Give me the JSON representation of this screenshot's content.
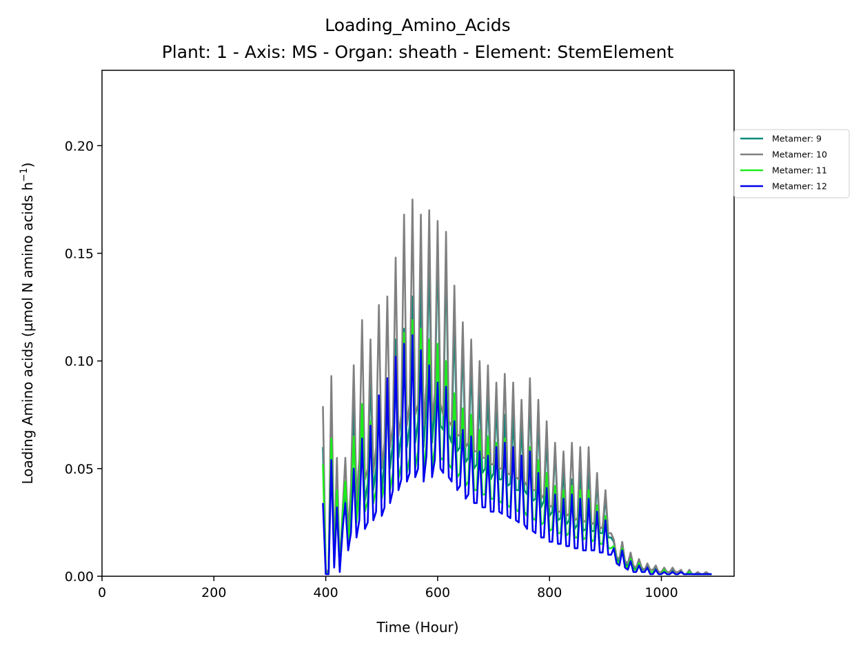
{
  "chart_data": {
    "type": "line",
    "title": "Loading_Amino_Acids",
    "subtitle": "Plant: 1 - Axis: MS - Organ: sheath - Element: StemElement",
    "xlabel": "Time (Hour)",
    "ylabel": "Loading Amino acids (µmol N amino acids h",
    "ylabel_superscript": "−1",
    "ylabel_close": ")",
    "xlim": [
      0,
      1130
    ],
    "ylim": [
      0,
      0.235
    ],
    "x_ticks": [
      0,
      200,
      400,
      600,
      800,
      1000
    ],
    "x_tick_labels": [
      "0",
      "200",
      "400",
      "600",
      "800",
      "1000"
    ],
    "y_ticks": [
      0,
      0.05,
      0.1,
      0.15,
      0.2
    ],
    "y_tick_labels": [
      "0.00",
      "0.05",
      "0.10",
      "0.15",
      "0.20"
    ],
    "grid": false,
    "legend_position": "outside upper right",
    "series": [
      {
        "name": "Metamer: 9",
        "color": "#00897b",
        "x": [
          395,
          400,
          405,
          410,
          415,
          420,
          425,
          430,
          435,
          440,
          445,
          450,
          455,
          460,
          465,
          470,
          475,
          480,
          485,
          490,
          495,
          500,
          505,
          510,
          515,
          520,
          525,
          530,
          535,
          540,
          545,
          550,
          555,
          560,
          565,
          570,
          575,
          580,
          585,
          590,
          595,
          600,
          605,
          610,
          615,
          620,
          625,
          630,
          635,
          640,
          645,
          650,
          655,
          660,
          665,
          670,
          675,
          680,
          685,
          690,
          695,
          700,
          705,
          710,
          715,
          720,
          725,
          730,
          735,
          740,
          745,
          750,
          755,
          760,
          765,
          770,
          775,
          780,
          785,
          790,
          795,
          800,
          805,
          810,
          815,
          820,
          825,
          830,
          835,
          840,
          845,
          850,
          855,
          860,
          865,
          870,
          875,
          880,
          885,
          890,
          895,
          900,
          905,
          910,
          915,
          920,
          925,
          930,
          935,
          940,
          945,
          950,
          955,
          960,
          965,
          970,
          975,
          980,
          985,
          990,
          995,
          1000,
          1005,
          1010,
          1015,
          1020,
          1025,
          1030,
          1035,
          1040,
          1045,
          1050,
          1055,
          1060,
          1065,
          1070,
          1075,
          1080,
          1085,
          1090
        ],
        "values": [
          0.06,
          0.002,
          0.001,
          0.078,
          0.005,
          0.04,
          0.003,
          0.02,
          0.04,
          0.014,
          0.035,
          0.08,
          0.028,
          0.048,
          0.08,
          0.035,
          0.043,
          0.095,
          0.04,
          0.05,
          0.082,
          0.038,
          0.055,
          0.09,
          0.05,
          0.062,
          0.11,
          0.055,
          0.066,
          0.115,
          0.06,
          0.07,
          0.13,
          0.062,
          0.072,
          0.14,
          0.06,
          0.082,
          0.15,
          0.062,
          0.078,
          0.155,
          0.07,
          0.068,
          0.15,
          0.066,
          0.062,
          0.12,
          0.058,
          0.06,
          0.11,
          0.053,
          0.055,
          0.1,
          0.05,
          0.052,
          0.085,
          0.048,
          0.05,
          0.085,
          0.045,
          0.048,
          0.08,
          0.045,
          0.045,
          0.075,
          0.042,
          0.043,
          0.075,
          0.04,
          0.04,
          0.07,
          0.04,
          0.038,
          0.085,
          0.035,
          0.036,
          0.075,
          0.032,
          0.035,
          0.065,
          0.028,
          0.03,
          0.06,
          0.026,
          0.027,
          0.05,
          0.024,
          0.026,
          0.045,
          0.022,
          0.024,
          0.05,
          0.021,
          0.022,
          0.05,
          0.021,
          0.021,
          0.045,
          0.02,
          0.02,
          0.038,
          0.018,
          0.018,
          0.016,
          0.008,
          0.007,
          0.015,
          0.006,
          0.005,
          0.009,
          0.004,
          0.003,
          0.007,
          0.003,
          0.003,
          0.005,
          0.002,
          0.002,
          0.004,
          0.002,
          0.002,
          0.003,
          0.001,
          0.001,
          0.003,
          0.001,
          0.001,
          0.002,
          0.001,
          0.001,
          0.002,
          0.001,
          0.001,
          0.001,
          0.001,
          0.001,
          0.001,
          0.001,
          0.001
        ]
      },
      {
        "name": "Metamer: 10",
        "color": "#808080",
        "x": [
          395,
          400,
          405,
          410,
          415,
          420,
          425,
          430,
          435,
          440,
          445,
          450,
          455,
          460,
          465,
          470,
          475,
          480,
          485,
          490,
          495,
          500,
          505,
          510,
          515,
          520,
          525,
          530,
          535,
          540,
          545,
          550,
          555,
          560,
          565,
          570,
          575,
          580,
          585,
          590,
          595,
          600,
          605,
          610,
          615,
          620,
          625,
          630,
          635,
          640,
          645,
          650,
          655,
          660,
          665,
          670,
          675,
          680,
          685,
          690,
          695,
          700,
          705,
          710,
          715,
          720,
          725,
          730,
          735,
          740,
          745,
          750,
          755,
          760,
          765,
          770,
          775,
          780,
          785,
          790,
          795,
          800,
          805,
          810,
          815,
          820,
          825,
          830,
          835,
          840,
          845,
          850,
          855,
          860,
          865,
          870,
          875,
          880,
          885,
          890,
          895,
          900,
          905,
          910,
          915,
          920,
          925,
          930,
          935,
          940,
          945,
          950,
          955,
          960,
          965,
          970,
          975,
          980,
          985,
          990,
          995,
          1000,
          1005,
          1010,
          1015,
          1020,
          1025,
          1030,
          1035,
          1040,
          1045,
          1050,
          1055,
          1060,
          1065,
          1070,
          1075,
          1080,
          1085,
          1090
        ],
        "values": [
          0.079,
          0.003,
          0.002,
          0.093,
          0.008,
          0.055,
          0.004,
          0.03,
          0.055,
          0.02,
          0.042,
          0.098,
          0.035,
          0.055,
          0.119,
          0.045,
          0.05,
          0.11,
          0.048,
          0.06,
          0.126,
          0.05,
          0.062,
          0.13,
          0.06,
          0.07,
          0.148,
          0.065,
          0.075,
          0.168,
          0.07,
          0.08,
          0.175,
          0.075,
          0.08,
          0.168,
          0.07,
          0.09,
          0.17,
          0.072,
          0.085,
          0.165,
          0.08,
          0.075,
          0.16,
          0.072,
          0.07,
          0.135,
          0.065,
          0.066,
          0.118,
          0.06,
          0.062,
          0.11,
          0.058,
          0.058,
          0.1,
          0.055,
          0.055,
          0.098,
          0.052,
          0.052,
          0.09,
          0.05,
          0.05,
          0.094,
          0.048,
          0.047,
          0.09,
          0.046,
          0.045,
          0.082,
          0.044,
          0.042,
          0.092,
          0.04,
          0.04,
          0.082,
          0.036,
          0.038,
          0.072,
          0.032,
          0.033,
          0.062,
          0.03,
          0.03,
          0.058,
          0.028,
          0.029,
          0.062,
          0.026,
          0.027,
          0.06,
          0.025,
          0.026,
          0.06,
          0.024,
          0.025,
          0.048,
          0.022,
          0.023,
          0.04,
          0.02,
          0.02,
          0.017,
          0.009,
          0.008,
          0.016,
          0.007,
          0.006,
          0.011,
          0.005,
          0.004,
          0.008,
          0.004,
          0.003,
          0.006,
          0.003,
          0.003,
          0.005,
          0.002,
          0.002,
          0.004,
          0.002,
          0.002,
          0.004,
          0.002,
          0.002,
          0.003,
          0.001,
          0.001,
          0.003,
          0.001,
          0.001,
          0.002,
          0.001,
          0.001,
          0.002,
          0.001,
          0.001
        ]
      },
      {
        "name": "Metamer: 11",
        "color": "#1aee1a",
        "x": [
          395,
          400,
          405,
          410,
          415,
          420,
          425,
          430,
          435,
          440,
          445,
          450,
          455,
          460,
          465,
          470,
          475,
          480,
          485,
          490,
          495,
          500,
          505,
          510,
          515,
          520,
          525,
          530,
          535,
          540,
          545,
          550,
          555,
          560,
          565,
          570,
          575,
          580,
          585,
          590,
          595,
          600,
          605,
          610,
          615,
          620,
          625,
          630,
          635,
          640,
          645,
          650,
          655,
          660,
          665,
          670,
          675,
          680,
          685,
          690,
          695,
          700,
          705,
          710,
          715,
          720,
          725,
          730,
          735,
          740,
          745,
          750,
          755,
          760,
          765,
          770,
          775,
          780,
          785,
          790,
          795,
          800,
          805,
          810,
          815,
          820,
          825,
          830,
          835,
          840,
          845,
          850,
          855,
          860,
          865,
          870,
          875,
          880,
          885,
          890,
          895,
          900,
          905,
          910,
          915,
          920,
          925,
          930,
          935,
          940,
          945,
          950,
          955,
          960,
          965,
          970,
          975,
          980,
          985,
          990,
          995,
          1000,
          1005,
          1010,
          1015,
          1020,
          1025,
          1030,
          1035,
          1040,
          1045,
          1050,
          1055,
          1060,
          1065,
          1070,
          1075,
          1080,
          1085,
          1090
        ],
        "values": [
          0.052,
          0.002,
          0.001,
          0.064,
          0.006,
          0.04,
          0.003,
          0.028,
          0.044,
          0.015,
          0.03,
          0.065,
          0.025,
          0.038,
          0.08,
          0.03,
          0.035,
          0.072,
          0.034,
          0.04,
          0.082,
          0.036,
          0.042,
          0.085,
          0.04,
          0.048,
          0.1,
          0.045,
          0.052,
          0.113,
          0.048,
          0.055,
          0.119,
          0.05,
          0.058,
          0.115,
          0.048,
          0.062,
          0.11,
          0.05,
          0.06,
          0.108,
          0.055,
          0.054,
          0.1,
          0.052,
          0.05,
          0.085,
          0.046,
          0.048,
          0.078,
          0.042,
          0.044,
          0.075,
          0.04,
          0.04,
          0.068,
          0.038,
          0.038,
          0.065,
          0.036,
          0.036,
          0.062,
          0.035,
          0.034,
          0.064,
          0.033,
          0.032,
          0.06,
          0.031,
          0.03,
          0.055,
          0.03,
          0.028,
          0.06,
          0.027,
          0.026,
          0.054,
          0.024,
          0.025,
          0.048,
          0.021,
          0.022,
          0.042,
          0.02,
          0.02,
          0.04,
          0.019,
          0.02,
          0.042,
          0.018,
          0.018,
          0.04,
          0.017,
          0.018,
          0.04,
          0.016,
          0.017,
          0.033,
          0.015,
          0.015,
          0.028,
          0.013,
          0.013,
          0.014,
          0.007,
          0.006,
          0.013,
          0.005,
          0.004,
          0.008,
          0.003,
          0.003,
          0.006,
          0.002,
          0.002,
          0.004,
          0.002,
          0.002,
          0.003,
          0.001,
          0.001,
          0.003,
          0.001,
          0.001,
          0.002,
          0.001,
          0.001,
          0.002,
          0.001,
          0.001,
          0.002,
          0.001,
          0.001,
          0.001,
          0.001,
          0.001,
          0.001,
          0.001,
          0.001
        ]
      },
      {
        "name": "Metamer: 12",
        "color": "#0000ee",
        "x": [
          395,
          400,
          405,
          410,
          415,
          420,
          425,
          430,
          435,
          440,
          445,
          450,
          455,
          460,
          465,
          470,
          475,
          480,
          485,
          490,
          495,
          500,
          505,
          510,
          515,
          520,
          525,
          530,
          535,
          540,
          545,
          550,
          555,
          560,
          565,
          570,
          575,
          580,
          585,
          590,
          595,
          600,
          605,
          610,
          615,
          620,
          625,
          630,
          635,
          640,
          645,
          650,
          655,
          660,
          665,
          670,
          675,
          680,
          685,
          690,
          695,
          700,
          705,
          710,
          715,
          720,
          725,
          730,
          735,
          740,
          745,
          750,
          755,
          760,
          765,
          770,
          775,
          780,
          785,
          790,
          795,
          800,
          805,
          810,
          815,
          820,
          825,
          830,
          835,
          840,
          845,
          850,
          855,
          860,
          865,
          870,
          875,
          880,
          885,
          890,
          895,
          900,
          905,
          910,
          915,
          920,
          925,
          930,
          935,
          940,
          945,
          950,
          955,
          960,
          965,
          970,
          975,
          980,
          985,
          990,
          995,
          1000,
          1005,
          1010,
          1015,
          1020,
          1025,
          1030,
          1035,
          1040,
          1045,
          1050,
          1055,
          1060,
          1065,
          1070,
          1075,
          1080,
          1085,
          1090
        ],
        "values": [
          0.034,
          0.001,
          0.001,
          0.054,
          0.004,
          0.032,
          0.002,
          0.022,
          0.034,
          0.012,
          0.02,
          0.05,
          0.018,
          0.026,
          0.064,
          0.022,
          0.025,
          0.07,
          0.026,
          0.03,
          0.084,
          0.028,
          0.032,
          0.092,
          0.034,
          0.04,
          0.102,
          0.04,
          0.045,
          0.108,
          0.044,
          0.048,
          0.112,
          0.046,
          0.05,
          0.105,
          0.044,
          0.056,
          0.098,
          0.046,
          0.054,
          0.09,
          0.05,
          0.048,
          0.088,
          0.046,
          0.044,
          0.072,
          0.04,
          0.042,
          0.068,
          0.036,
          0.038,
          0.065,
          0.034,
          0.034,
          0.058,
          0.032,
          0.032,
          0.056,
          0.03,
          0.03,
          0.06,
          0.03,
          0.029,
          0.062,
          0.028,
          0.027,
          0.06,
          0.026,
          0.025,
          0.056,
          0.024,
          0.022,
          0.058,
          0.021,
          0.02,
          0.048,
          0.018,
          0.018,
          0.041,
          0.016,
          0.016,
          0.038,
          0.015,
          0.015,
          0.036,
          0.014,
          0.014,
          0.038,
          0.013,
          0.013,
          0.036,
          0.012,
          0.012,
          0.036,
          0.012,
          0.012,
          0.03,
          0.011,
          0.011,
          0.026,
          0.01,
          0.01,
          0.013,
          0.006,
          0.005,
          0.012,
          0.004,
          0.003,
          0.007,
          0.002,
          0.002,
          0.005,
          0.002,
          0.002,
          0.004,
          0.001,
          0.001,
          0.003,
          0.001,
          0.001,
          0.002,
          0.001,
          0.001,
          0.002,
          0.001,
          0.001,
          0.002,
          0.001,
          0.001,
          0.001,
          0.001,
          0.001,
          0.001,
          0.001,
          0.001,
          0.001,
          0.001,
          0.001
        ]
      }
    ]
  }
}
